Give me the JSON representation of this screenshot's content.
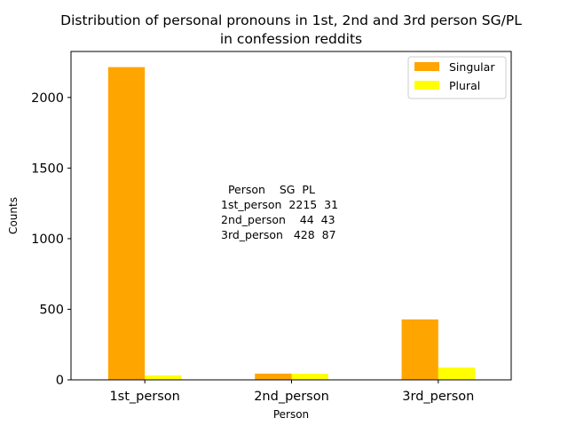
{
  "chart_data": {
    "type": "bar",
    "title": [
      "Distribution of personal pronouns in 1st, 2nd and 3rd person SG/PL",
      "in confession reddits"
    ],
    "xlabel": "Person",
    "ylabel": "Counts",
    "categories": [
      "1st_person",
      "2nd_person",
      "3rd_person"
    ],
    "series": [
      {
        "name": "Singular",
        "values": [
          2215,
          44,
          428
        ],
        "color": "#ffa500"
      },
      {
        "name": "Plural",
        "values": [
          31,
          43,
          87
        ],
        "color": "#ffff00"
      }
    ],
    "ylim": [
      0,
      2325.75
    ],
    "yticks": [
      0,
      500,
      1000,
      1500,
      2000
    ],
    "legend_position": "top-right",
    "grid": false,
    "annotation": [
      "  Person    SG  PL",
      "1st_person  2215  31",
      "2nd_person    44  43",
      "3rd_person   428  87"
    ]
  }
}
